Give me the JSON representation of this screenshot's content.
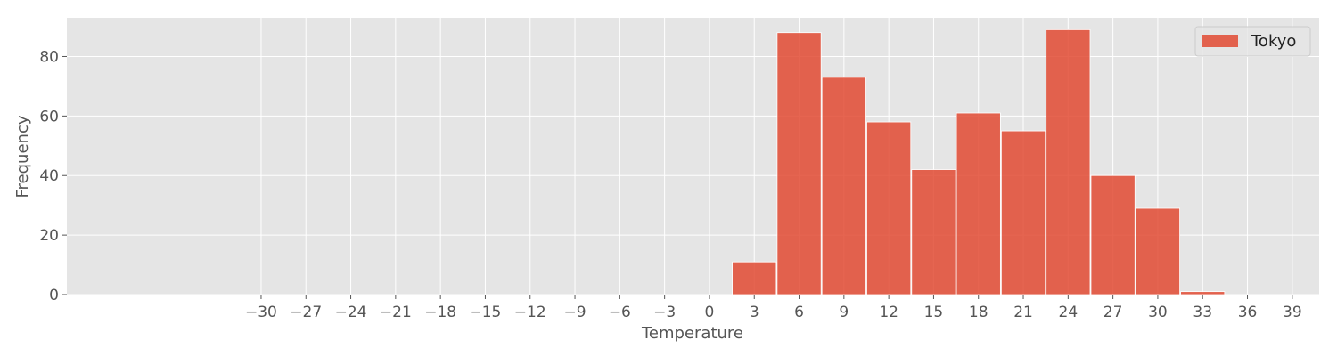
{
  "chart_data": {
    "type": "bar",
    "xlabel": "Temperature",
    "ylabel": "Frequency",
    "x_ticks": [
      -30,
      -27,
      -24,
      -21,
      -18,
      -15,
      -12,
      -9,
      -6,
      -3,
      0,
      3,
      6,
      9,
      12,
      15,
      18,
      21,
      24,
      27,
      30,
      33,
      36,
      39
    ],
    "y_ticks": [
      0,
      20,
      40,
      60,
      80
    ],
    "xlim": [
      -43,
      40.8
    ],
    "ylim": [
      0,
      93
    ],
    "bin_width": 3,
    "series": [
      {
        "name": "Tokyo",
        "color": "#e24a33",
        "bins": [
          {
            "x": 3,
            "value": 11
          },
          {
            "x": 6,
            "value": 88
          },
          {
            "x": 9,
            "value": 73
          },
          {
            "x": 12,
            "value": 58
          },
          {
            "x": 15,
            "value": 42
          },
          {
            "x": 18,
            "value": 61
          },
          {
            "x": 21,
            "value": 55
          },
          {
            "x": 24,
            "value": 89
          },
          {
            "x": 27,
            "value": 40
          },
          {
            "x": 30,
            "value": 29
          },
          {
            "x": 33,
            "value": 1
          }
        ]
      }
    ],
    "grid": true,
    "legend": "top-right",
    "background_color": "#e5e5e5"
  }
}
